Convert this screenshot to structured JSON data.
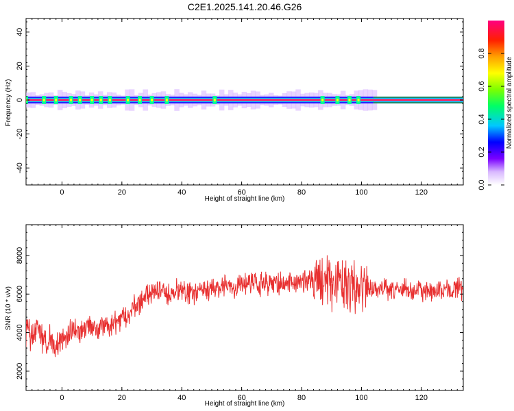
{
  "title": "C2E1.2025.141.20.46.G26",
  "chart_data": [
    {
      "type": "heatmap",
      "xlabel": "Height of straight line (km)",
      "ylabel": "Frequency (Hz)",
      "xlim": [
        -12,
        134
      ],
      "ylim": [
        -50,
        48
      ],
      "xticks": [
        0,
        20,
        40,
        60,
        80,
        100,
        120
      ],
      "yticks": [
        -40,
        -20,
        0,
        20,
        40
      ],
      "colorbar": {
        "label": "Normalized spectral amplitude",
        "ticks": [
          "0.0",
          "0.2",
          "0.4",
          "0.6",
          "0.8"
        ],
        "range": [
          0,
          1
        ],
        "colormap": [
          "#ffffff",
          "#d8b8ff",
          "#7a00ff",
          "#0000ff",
          "#00c8ff",
          "#00ff66",
          "#7cff00",
          "#ffff00",
          "#ffa000",
          "#ff2000",
          "#ff0080"
        ]
      },
      "line_frequency_hz": 0,
      "strong_segments_km": [
        [
          -12,
          104
        ],
        [
          104,
          134
        ]
      ],
      "bright_spots_km": [
        -12,
        -6,
        -2,
        3,
        6,
        10,
        13,
        16,
        22,
        26,
        30,
        35,
        51,
        87,
        92,
        96,
        99
      ]
    },
    {
      "type": "line",
      "xlabel": "Height of straight line (km)",
      "ylabel": "SNR (10 * v/v)",
      "xlim": [
        -12,
        134
      ],
      "ylim": [
        1000,
        9600
      ],
      "xticks": [
        0,
        20,
        40,
        60,
        80,
        100,
        120
      ],
      "yticks": [
        2000,
        4000,
        6000,
        8000
      ],
      "color": "#e83030",
      "x": [
        -12,
        -10,
        -8,
        -6,
        -4,
        -2,
        0,
        2,
        4,
        6,
        8,
        10,
        12,
        14,
        16,
        18,
        20,
        22,
        24,
        26,
        28,
        30,
        32,
        34,
        36,
        38,
        40,
        42,
        44,
        46,
        48,
        50,
        52,
        54,
        56,
        58,
        60,
        62,
        64,
        66,
        68,
        70,
        72,
        74,
        76,
        78,
        80,
        82,
        84,
        86,
        88,
        90,
        92,
        94,
        96,
        98,
        100,
        102,
        104,
        106,
        108,
        110,
        112,
        114,
        116,
        118,
        120,
        122,
        124,
        126,
        128,
        130,
        132,
        134
      ],
      "values": [
        4000,
        3800,
        4300,
        3500,
        3700,
        3300,
        3600,
        3900,
        4200,
        4000,
        4300,
        4500,
        4200,
        4300,
        4400,
        4500,
        4700,
        5000,
        5300,
        5600,
        5800,
        6000,
        6200,
        6100,
        6000,
        6200,
        6100,
        6100,
        6000,
        6100,
        6200,
        6300,
        6300,
        6400,
        6400,
        6300,
        6500,
        6600,
        6500,
        6400,
        6600,
        6500,
        6600,
        6500,
        6700,
        6600,
        6700,
        6700,
        6600,
        6800,
        6800,
        6600,
        6700,
        6600,
        6400,
        6300,
        6400,
        6300,
        6200,
        6200,
        6300,
        6200,
        6200,
        6300,
        6100,
        6200,
        6200,
        6100,
        6100,
        6200,
        6300,
        6200,
        6300,
        6300
      ]
    }
  ]
}
